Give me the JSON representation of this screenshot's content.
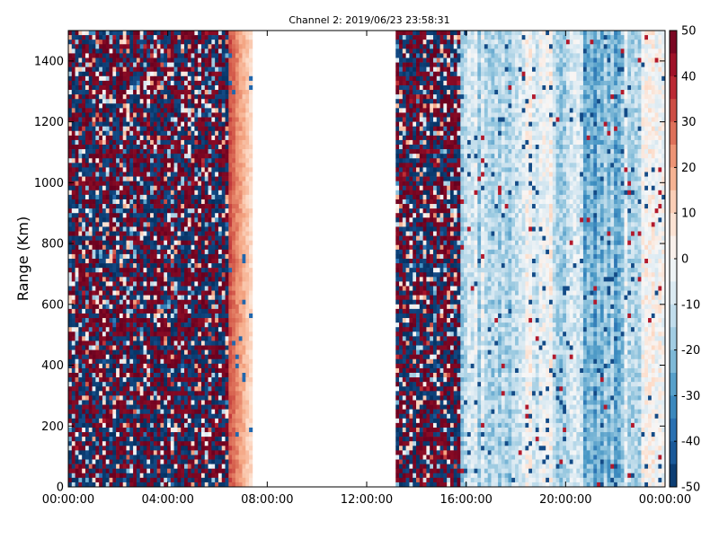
{
  "chart_data": {
    "type": "heatmap",
    "title": "Channel 2: 2019/06/23 23:58:31",
    "ylabel": "Range (Km)",
    "xlabel": "",
    "x_ticks": [
      "00:00:00",
      "04:00:00",
      "08:00:00",
      "12:00:00",
      "16:00:00",
      "20:00:00",
      "00:00:00"
    ],
    "x_range_hours": [
      0,
      24
    ],
    "y_ticks": [
      0,
      200,
      400,
      600,
      800,
      1000,
      1200,
      1400
    ],
    "ylim": [
      0,
      1500
    ],
    "colorbar": {
      "ticks": [
        50,
        40,
        30,
        20,
        10,
        0,
        -10,
        -20,
        -30,
        -40,
        -50
      ],
      "range": [
        -50,
        50
      ],
      "colormap": "RdBu_r",
      "colors": [
        "#053061",
        "#2166ac",
        "#4393c3",
        "#92c5de",
        "#d1e5f0",
        "#f7f7f7",
        "#fddbc7",
        "#f4a582",
        "#d6604d",
        "#b2182b",
        "#67001f"
      ]
    },
    "grid": false,
    "regions": [
      {
        "from_hour": 0.0,
        "to_hour": 6.5,
        "pattern": "noise",
        "min": -50,
        "max": 50
      },
      {
        "from_hour": 6.5,
        "to_hour": 7.4,
        "pattern": "positive",
        "min": 8,
        "max": 32
      },
      {
        "from_hour": 7.4,
        "to_hour": 13.2,
        "pattern": "no-data"
      },
      {
        "from_hour": 13.2,
        "to_hour": 15.8,
        "pattern": "noise",
        "min": -50,
        "max": 50
      },
      {
        "from_hour": 15.8,
        "to_hour": 24.0,
        "pattern": "mostly-negative",
        "min": -40,
        "max": 25
      }
    ]
  }
}
